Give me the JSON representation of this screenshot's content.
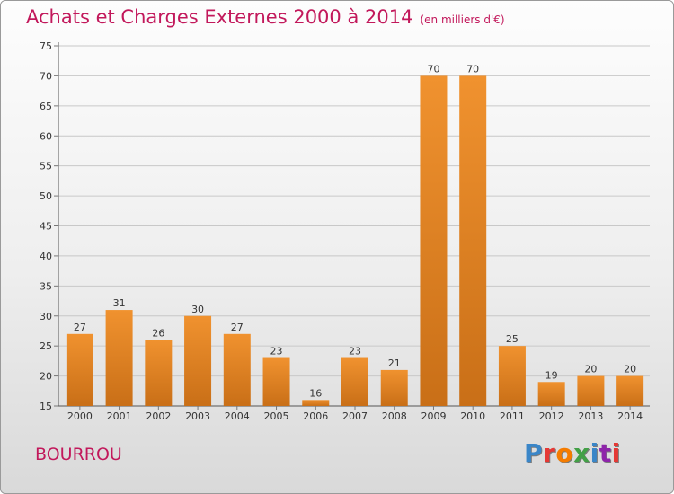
{
  "title": "Achats et Charges Externes 2000 à 2014",
  "subtitle": "(en milliers d'€)",
  "commune": "BOURROU",
  "logo": {
    "text": "Proxiti",
    "colors": [
      "#3a86c8",
      "#e53935",
      "#f57c00",
      "#43a047",
      "#3a86c8",
      "#8e24aa",
      "#e53935"
    ]
  },
  "colors": {
    "bar": "#f0922f",
    "bar_dark": "#c96f17",
    "title": "#c2185b"
  },
  "chart_data": {
    "type": "bar",
    "categories": [
      "2000",
      "2001",
      "2002",
      "2003",
      "2004",
      "2005",
      "2006",
      "2007",
      "2008",
      "2009",
      "2010",
      "2011",
      "2012",
      "2013",
      "2014"
    ],
    "values": [
      27,
      31,
      26,
      30,
      27,
      23,
      16,
      23,
      21,
      70,
      70,
      25,
      19,
      20,
      20
    ],
    "title": "Achats et Charges Externes 2000 à 2014",
    "xlabel": "",
    "ylabel": "",
    "ylim": [
      15,
      75
    ],
    "yticks": [
      15,
      20,
      25,
      30,
      35,
      40,
      45,
      50,
      55,
      60,
      65,
      70,
      75
    ],
    "grid": true,
    "data_labels": true
  }
}
